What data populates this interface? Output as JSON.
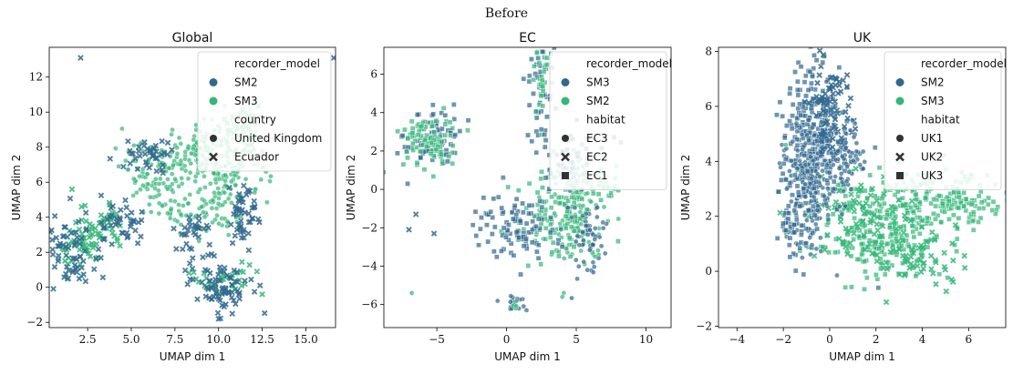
{
  "figure": {
    "title": "Before"
  },
  "palette": {
    "dark": "#31688e",
    "green": "#35b779"
  },
  "chart_data": [
    {
      "type": "scatter",
      "title": "Global",
      "xlabel": "UMAP dim 1",
      "ylabel": "UMAP dim 2",
      "xlim": [
        0.3,
        16.7
      ],
      "ylim": [
        -2.3,
        13.7
      ],
      "xticks": [
        2.5,
        5.0,
        7.5,
        10.0,
        12.5,
        15.0
      ],
      "xtick_labels": [
        "2.5",
        "5.0",
        "7.5",
        "10.0",
        "12.5",
        "15.0"
      ],
      "yticks": [
        -2,
        0,
        2,
        4,
        6,
        8,
        10,
        12
      ],
      "ytick_labels": [
        "−2",
        "0",
        "2",
        "4",
        "6",
        "8",
        "10",
        "12"
      ],
      "legend": {
        "placement": "upper right",
        "hue_title": "recorder_model",
        "hue_entries": [
          {
            "label": "SM2",
            "color": "#31688e"
          },
          {
            "label": "SM3",
            "color": "#35b779"
          }
        ],
        "style_title": "country",
        "style_entries": [
          {
            "label": "United Kingdom",
            "marker": "circle"
          },
          {
            "label": "Ecuador",
            "marker": "x"
          }
        ]
      },
      "clusters": [
        {
          "hue": "SM3",
          "marker": "circle",
          "cx": 9.0,
          "cy": 7.6,
          "sx": 1.4,
          "sy": 0.9,
          "n": 160
        },
        {
          "hue": "SM3",
          "marker": "circle",
          "cx": 10.9,
          "cy": 6.8,
          "sx": 1.0,
          "sy": 1.2,
          "n": 90
        },
        {
          "hue": "SM3",
          "marker": "circle",
          "cx": 6.2,
          "cy": 6.6,
          "sx": 0.9,
          "sy": 0.9,
          "n": 60
        },
        {
          "hue": "SM3",
          "marker": "circle",
          "cx": 7.5,
          "cy": 4.8,
          "sx": 0.9,
          "sy": 0.7,
          "n": 50
        },
        {
          "hue": "SM3",
          "marker": "circle",
          "cx": 9.5,
          "cy": 4.2,
          "sx": 0.7,
          "sy": 0.9,
          "n": 40
        },
        {
          "hue": "SM3",
          "marker": "x",
          "cx": 11.5,
          "cy": 9.3,
          "sx": 0.6,
          "sy": 0.6,
          "n": 25
        },
        {
          "hue": "SM3",
          "marker": "x",
          "cx": 2.2,
          "cy": 2.5,
          "sx": 0.8,
          "sy": 0.9,
          "n": 60
        },
        {
          "hue": "SM3",
          "marker": "x",
          "cx": 10.2,
          "cy": 0.6,
          "sx": 0.9,
          "sy": 0.5,
          "n": 30
        },
        {
          "hue": "SM3",
          "marker": "x",
          "cx": 3.6,
          "cy": 3.8,
          "sx": 0.5,
          "sy": 0.6,
          "n": 25
        },
        {
          "hue": "SM2",
          "marker": "x",
          "cx": 10.0,
          "cy": 0.2,
          "sx": 0.9,
          "sy": 0.8,
          "n": 80
        },
        {
          "hue": "SM2",
          "marker": "x",
          "cx": 11.5,
          "cy": 4.2,
          "sx": 0.5,
          "sy": 1.0,
          "n": 50
        },
        {
          "hue": "SM2",
          "marker": "x",
          "cx": 1.5,
          "cy": 1.9,
          "sx": 1.0,
          "sy": 1.0,
          "n": 70
        },
        {
          "hue": "SM2",
          "marker": "x",
          "cx": 4.5,
          "cy": 3.5,
          "sx": 0.7,
          "sy": 0.8,
          "n": 40
        },
        {
          "hue": "SM2",
          "marker": "x",
          "cx": 6.0,
          "cy": 7.5,
          "sx": 0.7,
          "sy": 0.5,
          "n": 40
        },
        {
          "hue": "SM2",
          "marker": "x",
          "cx": 8.4,
          "cy": 3.0,
          "sx": 0.6,
          "sy": 0.6,
          "n": 30
        }
      ],
      "outliers": [
        {
          "hue": "SM2",
          "marker": "x",
          "x": 2.1,
          "y": 13.1
        },
        {
          "hue": "SM2",
          "marker": "x",
          "x": 16.6,
          "y": 13.1
        },
        {
          "hue": "SM3",
          "marker": "x",
          "x": 1.6,
          "y": 5.6
        },
        {
          "hue": "SM3",
          "marker": "x",
          "x": 12.5,
          "y": -0.4
        },
        {
          "hue": "SM3",
          "marker": "x",
          "x": 12.2,
          "y": 0.9
        },
        {
          "hue": "SM2",
          "marker": "x",
          "x": 10.0,
          "y": -1.8
        }
      ]
    },
    {
      "type": "scatter",
      "title": "EC",
      "xlabel": "UMAP dim 1",
      "ylabel": "UMAP dim 2",
      "xlim": [
        -8.8,
        11.8
      ],
      "ylim": [
        -7.2,
        7.4
      ],
      "xticks": [
        -5,
        0,
        5,
        10
      ],
      "xtick_labels": [
        "−5",
        "0",
        "5",
        "10"
      ],
      "yticks": [
        -6,
        -4,
        -2,
        0,
        2,
        4,
        6
      ],
      "ytick_labels": [
        "−6",
        "−4",
        "−2",
        "0",
        "2",
        "4",
        "6"
      ],
      "legend": {
        "placement": "upper right",
        "hue_title": "recorder_model",
        "hue_entries": [
          {
            "label": "SM3",
            "color": "#31688e"
          },
          {
            "label": "SM2",
            "color": "#35b779"
          }
        ],
        "style_title": "habitat",
        "style_entries": [
          {
            "label": "EC3",
            "marker": "circle"
          },
          {
            "label": "EC2",
            "marker": "x"
          },
          {
            "label": "EC1",
            "marker": "square"
          }
        ]
      },
      "clusters": [
        {
          "hue": "SM2",
          "marker": "square",
          "cx": -5.3,
          "cy": 2.7,
          "sx": 1.0,
          "sy": 0.8,
          "n": 80
        },
        {
          "hue": "SM3",
          "marker": "square",
          "cx": -5.6,
          "cy": 2.5,
          "sx": 1.0,
          "sy": 0.7,
          "n": 90
        },
        {
          "hue": "SM3",
          "marker": "circle",
          "cx": 4.8,
          "cy": -1.2,
          "sx": 1.2,
          "sy": 1.4,
          "n": 130
        },
        {
          "hue": "SM3",
          "marker": "square",
          "cx": 3.6,
          "cy": -1.0,
          "sx": 1.3,
          "sy": 1.2,
          "n": 100
        },
        {
          "hue": "SM2",
          "marker": "square",
          "cx": 0.4,
          "cy": -1.9,
          "sx": 1.4,
          "sy": 0.8,
          "n": 100
        },
        {
          "hue": "SM2",
          "marker": "circle",
          "cx": 5.6,
          "cy": -2.5,
          "sx": 0.8,
          "sy": 1.0,
          "n": 60
        },
        {
          "hue": "SM2",
          "marker": "square",
          "cx": 2.4,
          "cy": 5.0,
          "sx": 0.6,
          "sy": 1.5,
          "n": 45
        },
        {
          "hue": "SM3",
          "marker": "square",
          "cx": 2.5,
          "cy": 5.6,
          "sx": 0.3,
          "sy": 1.0,
          "n": 30
        },
        {
          "hue": "SM2",
          "marker": "square",
          "cx": 4.7,
          "cy": 1.7,
          "sx": 1.2,
          "sy": 0.8,
          "n": 50
        },
        {
          "hue": "SM2",
          "marker": "circle",
          "cx": 0.6,
          "cy": -5.9,
          "sx": 0.5,
          "sy": 0.2,
          "n": 18
        },
        {
          "hue": "SM3",
          "marker": "circle",
          "cx": 0.6,
          "cy": -6.1,
          "sx": 0.15,
          "sy": 0.15,
          "n": 5
        },
        {
          "hue": "SM3",
          "marker": "square",
          "cx": 6.3,
          "cy": 0.3,
          "sx": 0.9,
          "sy": 0.4,
          "n": 25
        }
      ],
      "outliers": [
        {
          "hue": "SM3",
          "marker": "circle",
          "x": -6.8,
          "y": -5.4
        },
        {
          "hue": "SM3",
          "marker": "circle",
          "x": 4.1,
          "y": -5.4
        },
        {
          "hue": "SM3",
          "marker": "circle",
          "x": 4.0,
          "y": -5.6
        },
        {
          "hue": "SM2",
          "marker": "x",
          "x": -6.5,
          "y": -1.3
        },
        {
          "hue": "SM2",
          "marker": "x",
          "x": -7.0,
          "y": -2.1
        },
        {
          "hue": "SM2",
          "marker": "x",
          "x": -5.2,
          "y": -2.3
        },
        {
          "hue": "SM3",
          "marker": "square",
          "x": -7.4,
          "y": 1.3
        },
        {
          "hue": "SM3",
          "marker": "square",
          "x": 8.0,
          "y": -2.7
        },
        {
          "hue": "SM3",
          "marker": "square",
          "x": 7.8,
          "y": 0.6
        },
        {
          "hue": "SM2",
          "marker": "circle",
          "x": 5.8,
          "y": -4.2
        }
      ]
    },
    {
      "type": "scatter",
      "title": "UK",
      "xlabel": "UMAP dim 1",
      "ylabel": "UMAP dim 2",
      "xlim": [
        -4.8,
        7.6
      ],
      "ylim": [
        -2.05,
        8.15
      ],
      "xticks": [
        -4,
        -2,
        0,
        2,
        4,
        6
      ],
      "xtick_labels": [
        "−4",
        "−2",
        "0",
        "2",
        "4",
        "6"
      ],
      "yticks": [
        -2,
        0,
        2,
        4,
        6,
        8
      ],
      "ytick_labels": [
        "−2",
        "0",
        "2",
        "4",
        "6",
        "8"
      ],
      "legend": {
        "placement": "upper right",
        "hue_title": "recorder_model",
        "hue_entries": [
          {
            "label": "SM2",
            "color": "#31688e"
          },
          {
            "label": "SM3",
            "color": "#35b779"
          }
        ],
        "style_title": "habitat",
        "style_entries": [
          {
            "label": "UK1",
            "marker": "circle"
          },
          {
            "label": "UK2",
            "marker": "x"
          },
          {
            "label": "UK3",
            "marker": "square"
          }
        ]
      },
      "clusters": [
        {
          "hue": "SM3",
          "marker": "square",
          "cx": 2.4,
          "cy": 1.4,
          "sx": 1.4,
          "sy": 0.9,
          "n": 260
        },
        {
          "hue": "SM3",
          "marker": "square",
          "cx": 5.0,
          "cy": 2.6,
          "sx": 1.3,
          "sy": 0.5,
          "n": 160
        },
        {
          "hue": "SM3",
          "marker": "x",
          "cx": 1.0,
          "cy": 2.1,
          "sx": 1.1,
          "sy": 0.8,
          "n": 80
        },
        {
          "hue": "SM3",
          "marker": "x",
          "cx": 3.6,
          "cy": 0.5,
          "sx": 1.3,
          "sy": 0.6,
          "n": 70
        },
        {
          "hue": "SM2",
          "marker": "square",
          "cx": -0.7,
          "cy": 5.0,
          "sx": 0.65,
          "sy": 1.2,
          "n": 260
        },
        {
          "hue": "SM2",
          "marker": "circle",
          "cx": -0.9,
          "cy": 3.3,
          "sx": 0.55,
          "sy": 1.1,
          "n": 200
        },
        {
          "hue": "SM2",
          "marker": "x",
          "cx": 0.0,
          "cy": 5.9,
          "sx": 0.5,
          "sy": 0.9,
          "n": 80
        },
        {
          "hue": "SM2",
          "marker": "square",
          "cx": -1.4,
          "cy": 2.0,
          "sx": 0.4,
          "sy": 0.9,
          "n": 70
        },
        {
          "hue": "SM2",
          "marker": "circle",
          "cx": 0.8,
          "cy": 4.2,
          "sx": 0.35,
          "sy": 0.8,
          "n": 60
        }
      ],
      "outliers": [
        {
          "hue": "SM3",
          "marker": "circle",
          "x": -1.9,
          "y": 4.6
        },
        {
          "hue": "SM2",
          "marker": "square",
          "x": 2.1,
          "y": -0.6
        },
        {
          "hue": "SM3",
          "marker": "square",
          "x": 6.8,
          "y": 3.5
        },
        {
          "hue": "SM2",
          "marker": "square",
          "x": -0.3,
          "y": 7.6
        }
      ]
    }
  ]
}
